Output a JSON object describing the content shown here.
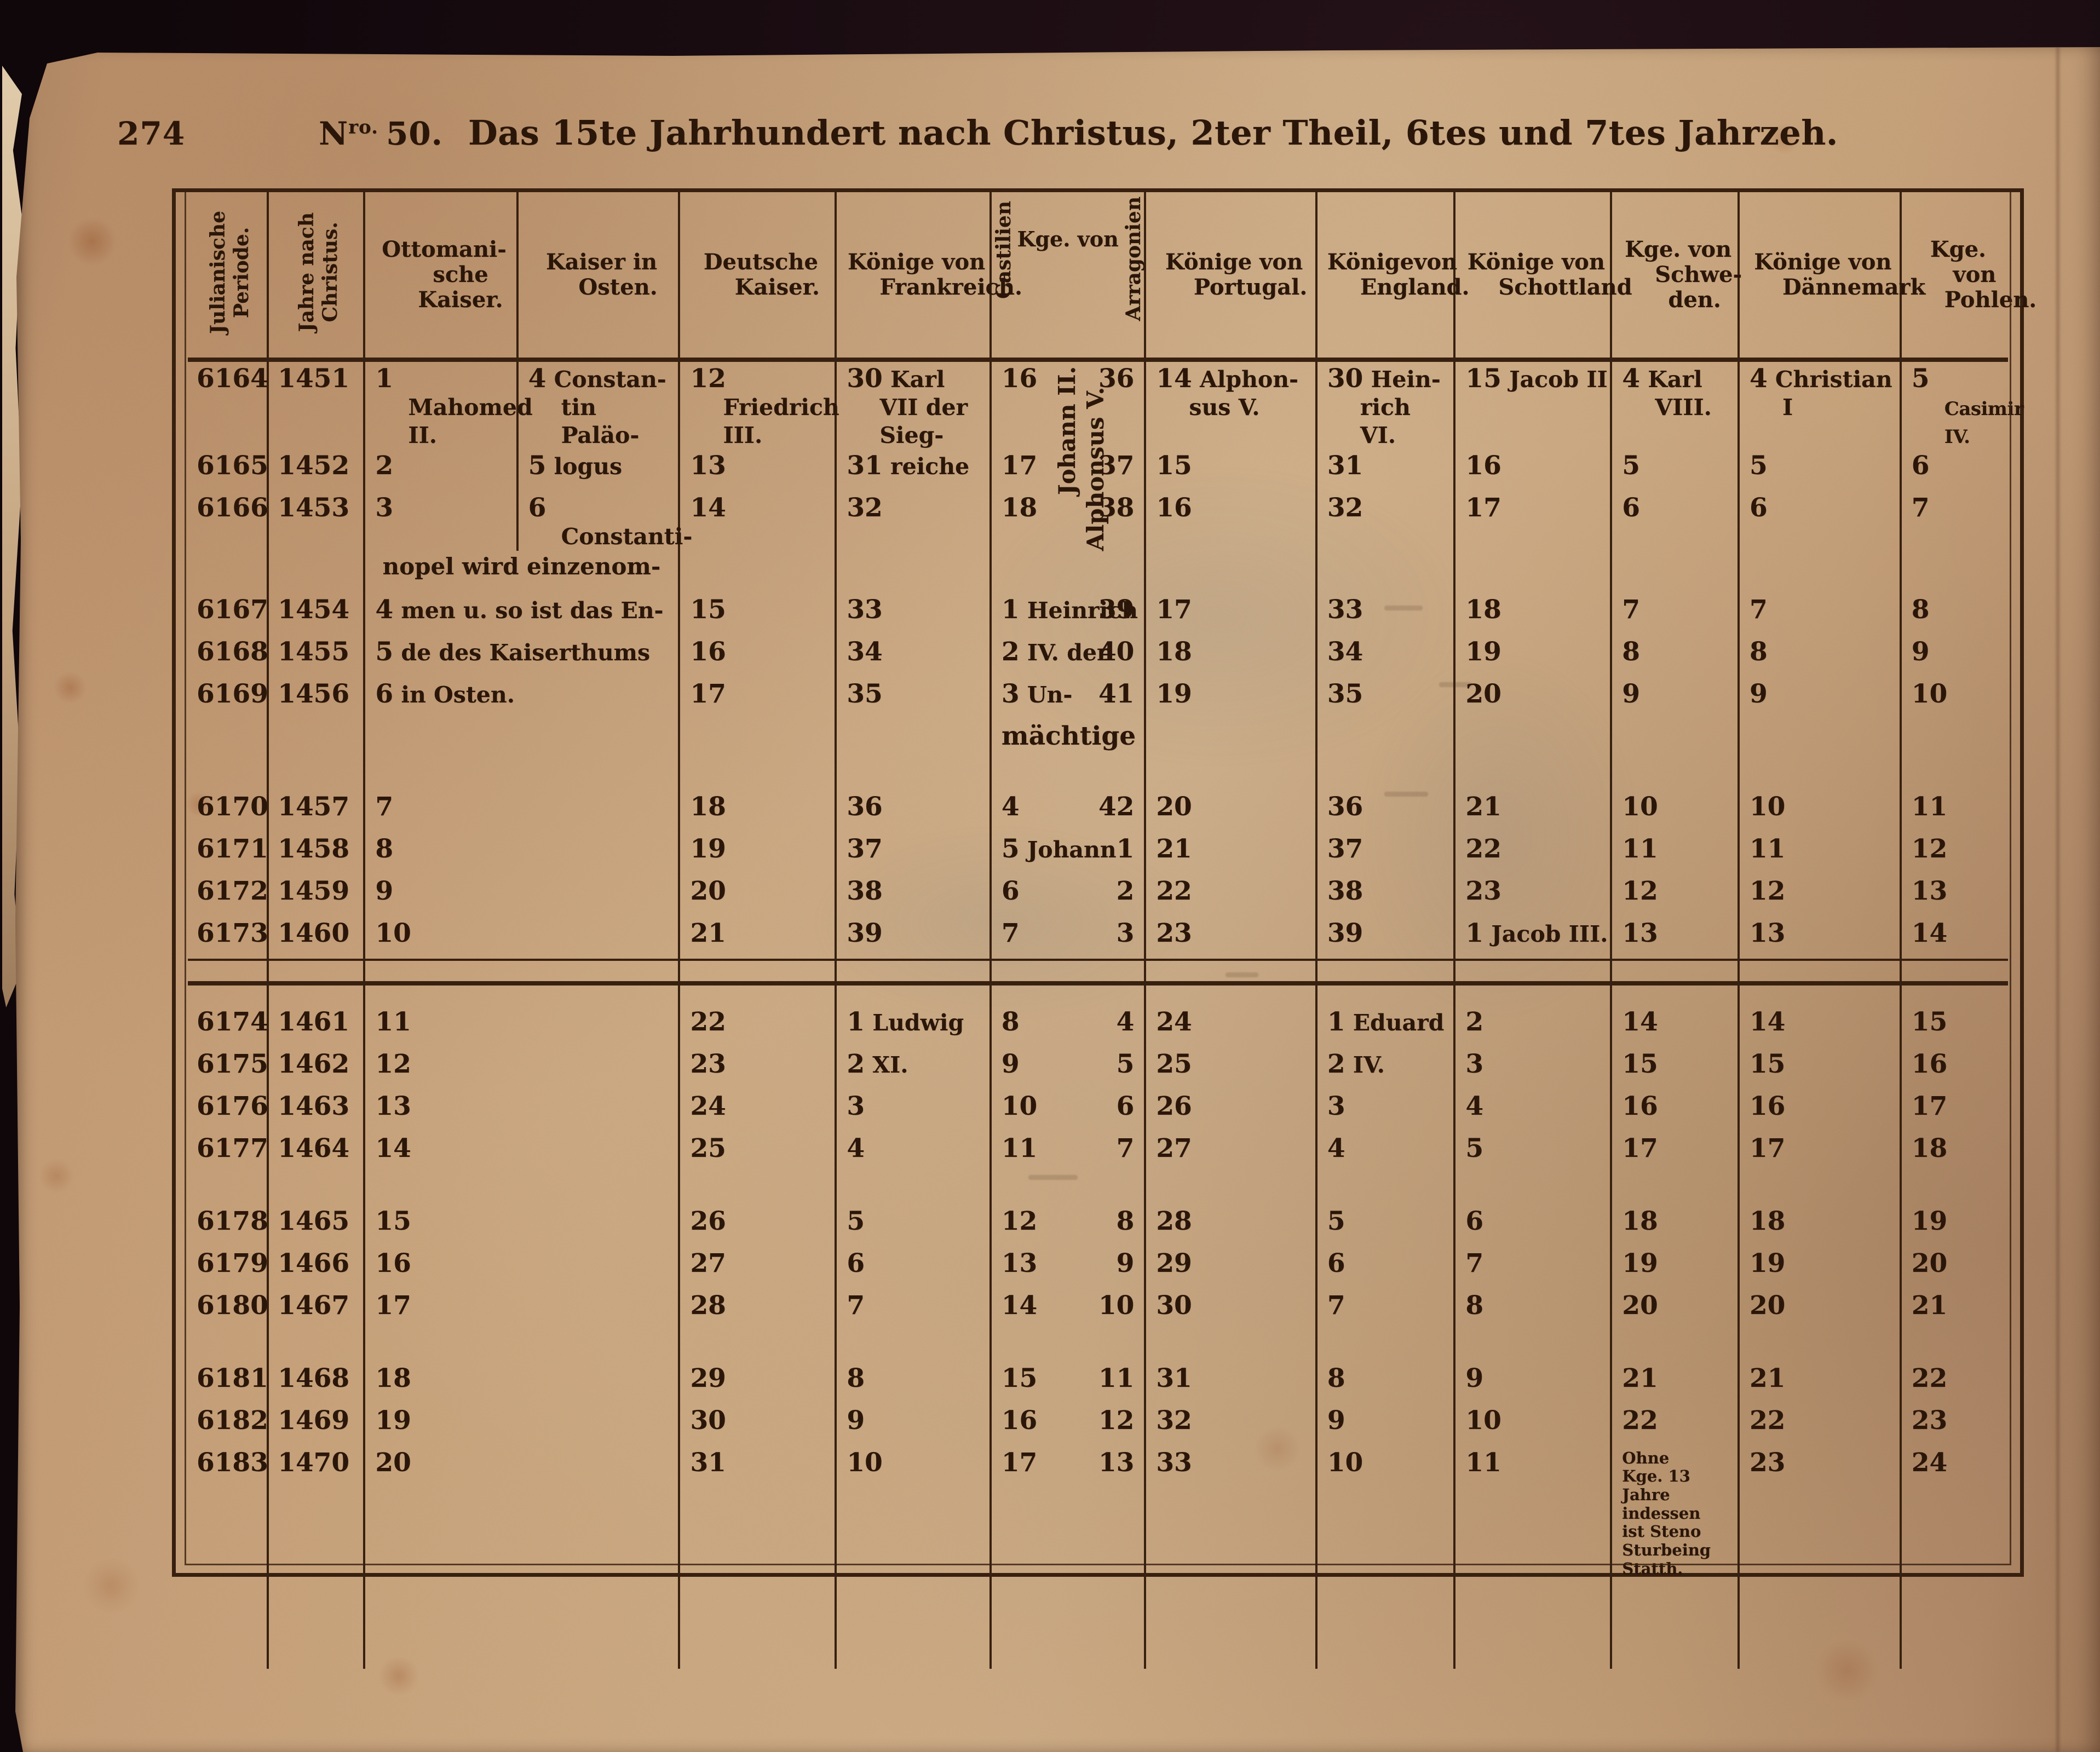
{
  "page": {
    "number": "274",
    "issue_prefix": "N",
    "issue_sup": "ro.",
    "issue_value": "50.",
    "title": "Das 15te Jahrhundert nach Christus, 2ter Theil, 6tes und 7tes Jahrzeh."
  },
  "colors": {
    "paper": "#c7a17b",
    "ink": "#2b1609",
    "table_line": "#38200f",
    "background": "#120a0e",
    "stain_rust": "#8a4a28"
  },
  "table": {
    "headers": {
      "julianische": {
        "line1": "Julianische",
        "line2": "Periode."
      },
      "jahre": {
        "line1": "Jahre nach",
        "line2": "Christus."
      },
      "ottoman": "Ottomani- sche Kaiser.",
      "kaiser_osten": "Kaiser in Osten.",
      "deutsche": "Deutsche Kaiser.",
      "frankreich": "Könige von Frankreich.",
      "castilien_rot": "Castilien",
      "kge_von": "Kge. von",
      "arragonien_rot": "Arragonien",
      "portugal": "Könige von Portugal.",
      "england": "Königevon England.",
      "schottland": "Könige von Schottland",
      "schweden": "Kge. von Schwe- den.",
      "dannemark": "Könige von Dännemark",
      "pohlen": "Kge. von Pohlen."
    },
    "rotated_kings": {
      "castilien": "Johann II.",
      "arragonien": "Alphonsus V."
    },
    "interstitials": {
      "nopel": "nopel wird einzenom-",
      "machtige": "mächtige"
    },
    "rows": [
      {
        "jul": "6164",
        "year": "1451",
        "cls": "r2",
        "c": {
          "ott": [
            "1",
            "Mahomed II."
          ],
          "ost": [
            "4",
            "Constan- tin Paläo-"
          ],
          "dt": [
            "12",
            "Friedrich III."
          ],
          "fr": [
            "30",
            "Karl VII der Sieg-"
          ],
          "cast": [
            "16",
            ""
          ],
          "arag": [
            "36",
            ""
          ],
          "pt": [
            "14",
            "Alphon- sus V."
          ],
          "en": [
            "30",
            "Hein- rich VI."
          ],
          "sc": [
            "15",
            "Jacob II"
          ],
          "sw": [
            "4",
            "Karl VIII."
          ],
          "dk": [
            "4",
            "Christian I"
          ],
          "pl": [
            "5",
            "Casimir IV."
          ]
        }
      },
      {
        "jul": "6165",
        "year": "1452",
        "c": {
          "ott": [
            "2",
            ""
          ],
          "ost": [
            "5",
            "logus"
          ],
          "dt": [
            "13",
            ""
          ],
          "fr": [
            "31",
            "reiche"
          ],
          "cast": [
            "17",
            ""
          ],
          "arag": [
            "37",
            ""
          ],
          "pt": [
            "15",
            ""
          ],
          "en": [
            "31",
            ""
          ],
          "sc": [
            "16",
            ""
          ],
          "sw": [
            "5",
            ""
          ],
          "dk": [
            "5",
            ""
          ],
          "pl": [
            "6",
            ""
          ]
        }
      },
      {
        "jul": "6166",
        "year": "1453",
        "c": {
          "ott": [
            "3",
            ""
          ],
          "ost": [
            "6",
            "Constanti-"
          ],
          "dt": [
            "14",
            ""
          ],
          "fr": [
            "32",
            ""
          ],
          "cast": [
            "18",
            ""
          ],
          "arag": [
            "38",
            ""
          ],
          "pt": [
            "16",
            ""
          ],
          "en": [
            "32",
            ""
          ],
          "sc": [
            "17",
            ""
          ],
          "sw": [
            "6",
            ""
          ],
          "dk": [
            "6",
            ""
          ],
          "pl": [
            "7",
            ""
          ]
        }
      },
      {
        "type": "nopel",
        "m": 1
      },
      {
        "jul": "6167",
        "year": "1454",
        "m": 1,
        "c": {
          "ott": [
            "4",
            "men u. so ist das En-"
          ],
          "dt": [
            "15",
            ""
          ],
          "fr": [
            "33",
            ""
          ],
          "cast": [
            "1",
            "Heinrich"
          ],
          "arag": [
            "39",
            ""
          ],
          "pt": [
            "17",
            ""
          ],
          "en": [
            "33",
            ""
          ],
          "sc": [
            "18",
            ""
          ],
          "sw": [
            "7",
            ""
          ],
          "dk": [
            "7",
            ""
          ],
          "pl": [
            "8",
            ""
          ]
        }
      },
      {
        "jul": "6168",
        "year": "1455",
        "m": 1,
        "c": {
          "ott": [
            "5",
            "de des Kaiserthums"
          ],
          "dt": [
            "16",
            ""
          ],
          "fr": [
            "34",
            ""
          ],
          "cast": [
            "2",
            "IV. der"
          ],
          "arag": [
            "40",
            ""
          ],
          "pt": [
            "18",
            ""
          ],
          "en": [
            "34",
            ""
          ],
          "sc": [
            "19",
            ""
          ],
          "sw": [
            "8",
            ""
          ],
          "dk": [
            "8",
            ""
          ],
          "pl": [
            "9",
            ""
          ]
        }
      },
      {
        "jul": "6169",
        "year": "1456",
        "m": 1,
        "c": {
          "ott": [
            "6",
            "in Osten."
          ],
          "dt": [
            "17",
            ""
          ],
          "fr": [
            "35",
            ""
          ],
          "cast": [
            "3",
            "Un-"
          ],
          "arag": [
            "41",
            ""
          ],
          "pt": [
            "19",
            ""
          ],
          "en": [
            "35",
            ""
          ],
          "sc": [
            "20",
            ""
          ],
          "sw": [
            "9",
            ""
          ],
          "dk": [
            "9",
            ""
          ],
          "pl": [
            "10",
            ""
          ]
        }
      },
      {
        "type": "machtige",
        "m": 1
      },
      {
        "type": "gap",
        "h": 52,
        "m": 1
      },
      {
        "jul": "6170",
        "year": "1457",
        "m": 1,
        "c": {
          "ott": [
            "7",
            ""
          ],
          "dt": [
            "18",
            ""
          ],
          "fr": [
            "36",
            ""
          ],
          "cast": [
            "4",
            ""
          ],
          "arag": [
            "42",
            ""
          ],
          "pt": [
            "20",
            ""
          ],
          "en": [
            "36",
            ""
          ],
          "sc": [
            "21",
            ""
          ],
          "sw": [
            "10",
            ""
          ],
          "dk": [
            "10",
            ""
          ],
          "pl": [
            "11",
            ""
          ]
        }
      },
      {
        "jul": "6171",
        "year": "1458",
        "m": 1,
        "c": {
          "ott": [
            "8",
            ""
          ],
          "dt": [
            "19",
            ""
          ],
          "fr": [
            "37",
            ""
          ],
          "cast": [
            "5",
            "Johann"
          ],
          "arag": [
            "1",
            ""
          ],
          "pt": [
            "21",
            ""
          ],
          "en": [
            "37",
            ""
          ],
          "sc": [
            "22",
            ""
          ],
          "sw": [
            "11",
            ""
          ],
          "dk": [
            "11",
            ""
          ],
          "pl": [
            "12",
            ""
          ]
        }
      },
      {
        "jul": "6172",
        "year": "1459",
        "m": 1,
        "c": {
          "ott": [
            "9",
            ""
          ],
          "dt": [
            "20",
            ""
          ],
          "fr": [
            "38",
            ""
          ],
          "cast": [
            "6",
            ""
          ],
          "arag": [
            "2",
            ""
          ],
          "pt": [
            "22",
            ""
          ],
          "en": [
            "38",
            ""
          ],
          "sc": [
            "23",
            ""
          ],
          "sw": [
            "12",
            ""
          ],
          "dk": [
            "12",
            ""
          ],
          "pl": [
            "13",
            ""
          ]
        }
      },
      {
        "jul": "6173",
        "year": "1460",
        "m": 1,
        "c": {
          "ott": [
            "10",
            ""
          ],
          "dt": [
            "21",
            ""
          ],
          "fr": [
            "39",
            ""
          ],
          "cast": [
            "7",
            ""
          ],
          "arag": [
            "3",
            ""
          ],
          "pt": [
            "23",
            ""
          ],
          "en": [
            "39",
            ""
          ],
          "sc": [
            "1",
            "Jacob III."
          ],
          "sw": [
            "13",
            ""
          ],
          "dk": [
            "13",
            ""
          ],
          "pl": [
            "14",
            ""
          ]
        }
      },
      {
        "type": "divider",
        "m": 1
      },
      {
        "type": "gap",
        "h": 40,
        "m": 1
      },
      {
        "jul": "6174",
        "year": "1461",
        "m": 1,
        "c": {
          "ott": [
            "11",
            ""
          ],
          "dt": [
            "22",
            ""
          ],
          "fr": [
            "1",
            "Ludwig"
          ],
          "cast": [
            "8",
            ""
          ],
          "arag": [
            "4",
            ""
          ],
          "pt": [
            "24",
            ""
          ],
          "en": [
            "1",
            "Eduard"
          ],
          "sc": [
            "2",
            ""
          ],
          "sw": [
            "14",
            ""
          ],
          "dk": [
            "14",
            ""
          ],
          "pl": [
            "15",
            ""
          ]
        }
      },
      {
        "jul": "6175",
        "year": "1462",
        "m": 1,
        "c": {
          "ott": [
            "12",
            ""
          ],
          "dt": [
            "23",
            ""
          ],
          "fr": [
            "2",
            "XI."
          ],
          "cast": [
            "9",
            ""
          ],
          "arag": [
            "5",
            ""
          ],
          "pt": [
            "25",
            ""
          ],
          "en": [
            "2",
            "IV."
          ],
          "sc": [
            "3",
            ""
          ],
          "sw": [
            "15",
            ""
          ],
          "dk": [
            "15",
            ""
          ],
          "pl": [
            "16",
            ""
          ]
        }
      },
      {
        "jul": "6176",
        "year": "1463",
        "m": 1,
        "c": {
          "ott": [
            "13",
            ""
          ],
          "dt": [
            "24",
            ""
          ],
          "fr": [
            "3",
            ""
          ],
          "cast": [
            "10",
            ""
          ],
          "arag": [
            "6",
            ""
          ],
          "pt": [
            "26",
            ""
          ],
          "en": [
            "3",
            ""
          ],
          "sc": [
            "4",
            ""
          ],
          "sw": [
            "16",
            ""
          ],
          "dk": [
            "16",
            ""
          ],
          "pl": [
            "17",
            ""
          ]
        }
      },
      {
        "jul": "6177",
        "year": "1464",
        "m": 1,
        "c": {
          "ott": [
            "14",
            ""
          ],
          "dt": [
            "25",
            ""
          ],
          "fr": [
            "4",
            ""
          ],
          "cast": [
            "11",
            ""
          ],
          "arag": [
            "7",
            ""
          ],
          "pt": [
            "27",
            ""
          ],
          "en": [
            "4",
            ""
          ],
          "sc": [
            "5",
            ""
          ],
          "sw": [
            "17",
            ""
          ],
          "dk": [
            "17",
            ""
          ],
          "pl": [
            "18",
            ""
          ]
        }
      },
      {
        "type": "gap",
        "h": 56,
        "m": 1
      },
      {
        "jul": "6178",
        "year": "1465",
        "m": 1,
        "c": {
          "ott": [
            "15",
            ""
          ],
          "dt": [
            "26",
            ""
          ],
          "fr": [
            "5",
            ""
          ],
          "cast": [
            "12",
            ""
          ],
          "arag": [
            "8",
            ""
          ],
          "pt": [
            "28",
            ""
          ],
          "en": [
            "5",
            ""
          ],
          "sc": [
            "6",
            ""
          ],
          "sw": [
            "18",
            ""
          ],
          "dk": [
            "18",
            ""
          ],
          "pl": [
            "19",
            ""
          ]
        }
      },
      {
        "jul": "6179",
        "year": "1466",
        "m": 1,
        "c": {
          "ott": [
            "16",
            ""
          ],
          "dt": [
            "27",
            ""
          ],
          "fr": [
            "6",
            ""
          ],
          "cast": [
            "13",
            ""
          ],
          "arag": [
            "9",
            ""
          ],
          "pt": [
            "29",
            ""
          ],
          "en": [
            "6",
            ""
          ],
          "sc": [
            "7",
            ""
          ],
          "sw": [
            "19",
            ""
          ],
          "dk": [
            "19",
            ""
          ],
          "pl": [
            "20",
            ""
          ]
        }
      },
      {
        "jul": "6180",
        "year": "1467",
        "m": 1,
        "c": {
          "ott": [
            "17",
            ""
          ],
          "dt": [
            "28",
            ""
          ],
          "fr": [
            "7",
            ""
          ],
          "cast": [
            "14",
            ""
          ],
          "arag": [
            "10",
            ""
          ],
          "pt": [
            "30",
            ""
          ],
          "en": [
            "7",
            ""
          ],
          "sc": [
            "8",
            ""
          ],
          "sw": [
            "20",
            ""
          ],
          "dk": [
            "20",
            ""
          ],
          "pl": [
            "21",
            ""
          ]
        }
      },
      {
        "type": "gap",
        "h": 56,
        "m": 1
      },
      {
        "jul": "6181",
        "year": "1468",
        "m": 1,
        "c": {
          "ott": [
            "18",
            ""
          ],
          "dt": [
            "29",
            ""
          ],
          "fr": [
            "8",
            ""
          ],
          "cast": [
            "15",
            ""
          ],
          "arag": [
            "11",
            ""
          ],
          "pt": [
            "31",
            ""
          ],
          "en": [
            "8",
            ""
          ],
          "sc": [
            "9",
            ""
          ],
          "sw": [
            "21",
            ""
          ],
          "dk": [
            "21",
            ""
          ],
          "pl": [
            "22",
            ""
          ]
        }
      },
      {
        "jul": "6182",
        "year": "1469",
        "m": 1,
        "c": {
          "ott": [
            "19",
            ""
          ],
          "dt": [
            "30",
            ""
          ],
          "fr": [
            "9",
            ""
          ],
          "cast": [
            "16",
            ""
          ],
          "arag": [
            "12",
            ""
          ],
          "pt": [
            "32",
            ""
          ],
          "en": [
            "9",
            ""
          ],
          "sc": [
            "10",
            ""
          ],
          "sw": [
            "22",
            ""
          ],
          "dk": [
            "22",
            ""
          ],
          "pl": [
            "23",
            ""
          ]
        }
      },
      {
        "jul": "6183",
        "year": "1470",
        "m": 1,
        "cls": "r-note",
        "note": "sw",
        "c": {
          "ott": [
            "20",
            ""
          ],
          "dt": [
            "31",
            ""
          ],
          "fr": [
            "10",
            ""
          ],
          "cast": [
            "17",
            ""
          ],
          "arag": [
            "13",
            ""
          ],
          "pt": [
            "33",
            ""
          ],
          "en": [
            "10",
            ""
          ],
          "sc": [
            "11",
            ""
          ],
          "sw": [
            "",
            "Ohne Kge. 13 Jahre indessen ist Steno Sturbeing Statth."
          ],
          "dk": [
            "23",
            ""
          ],
          "pl": [
            "24",
            ""
          ]
        }
      },
      {
        "type": "gap",
        "h": 40,
        "m": 1
      }
    ]
  }
}
